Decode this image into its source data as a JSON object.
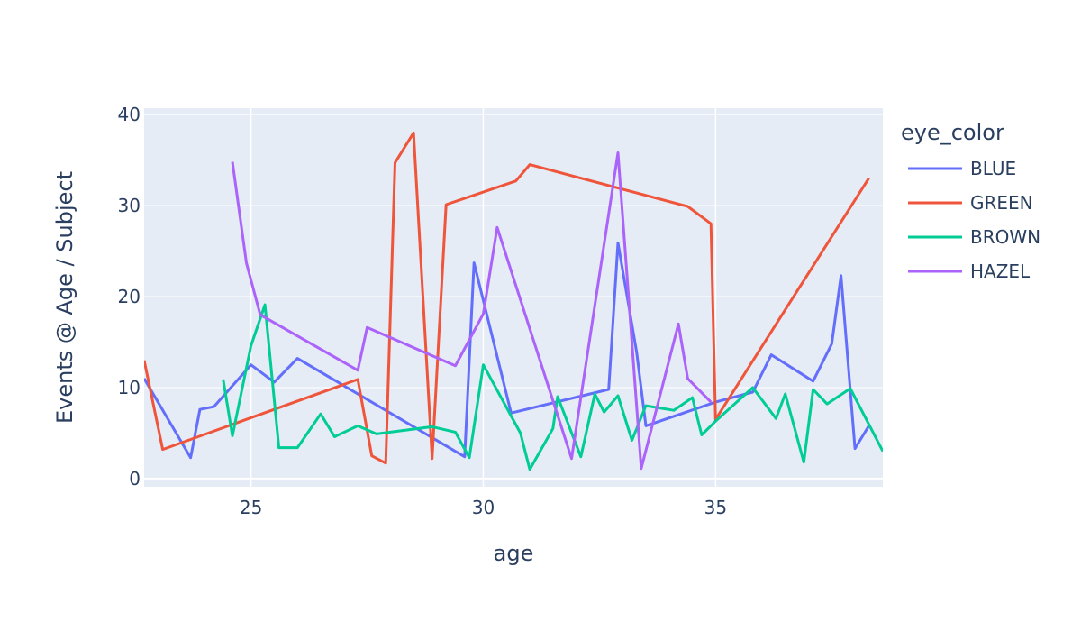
{
  "chart_data": {
    "type": "line",
    "xlabel": "age",
    "ylabel": "Events @ Age / Subject",
    "xlim": [
      22.7,
      38.6
    ],
    "ylim": [
      -0.9,
      40.7
    ],
    "xticks": [
      25,
      30,
      35
    ],
    "yticks": [
      0,
      10,
      20,
      30,
      40
    ],
    "grid": true,
    "legend": {
      "title": "eye_color",
      "placement": "right"
    },
    "plot_background": "#e5ecf6",
    "gridline_color": "#ffffff",
    "series": [
      {
        "name": "BLUE",
        "color": "#636efa",
        "points": [
          [
            22.7,
            11.0
          ],
          [
            23.7,
            2.3
          ],
          [
            23.9,
            7.6
          ],
          [
            24.2,
            7.9
          ],
          [
            25.0,
            12.5
          ],
          [
            25.5,
            10.6
          ],
          [
            26.0,
            13.2
          ],
          [
            29.6,
            2.4
          ],
          [
            29.8,
            23.7
          ],
          [
            30.6,
            7.2
          ],
          [
            32.7,
            9.8
          ],
          [
            32.9,
            25.9
          ],
          [
            33.3,
            13.9
          ],
          [
            33.5,
            5.8
          ],
          [
            35.0,
            8.4
          ],
          [
            35.8,
            9.5
          ],
          [
            36.2,
            13.6
          ],
          [
            37.1,
            10.7
          ],
          [
            37.5,
            14.8
          ],
          [
            37.7,
            22.3
          ],
          [
            38.0,
            3.3
          ],
          [
            38.3,
            5.8
          ]
        ]
      },
      {
        "name": "GREEN",
        "color": "#ef553b",
        "points": [
          [
            22.7,
            13.0
          ],
          [
            23.1,
            3.2
          ],
          [
            27.3,
            10.9
          ],
          [
            27.6,
            2.5
          ],
          [
            27.9,
            1.7
          ],
          [
            28.1,
            34.7
          ],
          [
            28.5,
            38.0
          ],
          [
            28.9,
            2.2
          ],
          [
            29.2,
            30.1
          ],
          [
            30.7,
            32.7
          ],
          [
            31.0,
            34.5
          ],
          [
            34.4,
            29.9
          ],
          [
            34.9,
            28.0
          ],
          [
            35.0,
            6.5
          ],
          [
            38.3,
            33.0
          ]
        ]
      },
      {
        "name": "BROWN",
        "color": "#00cc96",
        "points": [
          [
            24.4,
            10.9
          ],
          [
            24.6,
            4.7
          ],
          [
            25.0,
            14.6
          ],
          [
            25.3,
            19.1
          ],
          [
            25.6,
            3.4
          ],
          [
            26.0,
            3.4
          ],
          [
            26.5,
            7.1
          ],
          [
            26.8,
            4.6
          ],
          [
            27.3,
            5.8
          ],
          [
            27.7,
            4.9
          ],
          [
            28.9,
            5.7
          ],
          [
            29.4,
            5.1
          ],
          [
            29.7,
            2.3
          ],
          [
            30.0,
            12.5
          ],
          [
            30.8,
            5.0
          ],
          [
            31.0,
            1.0
          ],
          [
            31.5,
            5.5
          ],
          [
            31.6,
            9.0
          ],
          [
            32.1,
            2.4
          ],
          [
            32.4,
            9.3
          ],
          [
            32.6,
            7.3
          ],
          [
            32.9,
            9.1
          ],
          [
            33.2,
            4.2
          ],
          [
            33.5,
            8.0
          ],
          [
            34.1,
            7.5
          ],
          [
            34.5,
            8.9
          ],
          [
            34.7,
            4.8
          ],
          [
            35.0,
            6.3
          ],
          [
            35.8,
            10.0
          ],
          [
            36.3,
            6.6
          ],
          [
            36.5,
            9.3
          ],
          [
            36.9,
            1.8
          ],
          [
            37.1,
            9.8
          ],
          [
            37.4,
            8.2
          ],
          [
            37.9,
            9.9
          ],
          [
            38.6,
            3.0
          ]
        ]
      },
      {
        "name": "HAZEL",
        "color": "#ab63fa",
        "points": [
          [
            24.6,
            34.8
          ],
          [
            24.9,
            23.7
          ],
          [
            25.2,
            18.0
          ],
          [
            27.3,
            11.9
          ],
          [
            27.5,
            16.6
          ],
          [
            29.4,
            12.4
          ],
          [
            30.0,
            18.1
          ],
          [
            30.3,
            27.6
          ],
          [
            31.9,
            2.2
          ],
          [
            32.9,
            35.8
          ],
          [
            33.4,
            1.1
          ],
          [
            34.2,
            17.0
          ],
          [
            34.4,
            11.0
          ],
          [
            34.9,
            8.4
          ]
        ]
      }
    ]
  }
}
